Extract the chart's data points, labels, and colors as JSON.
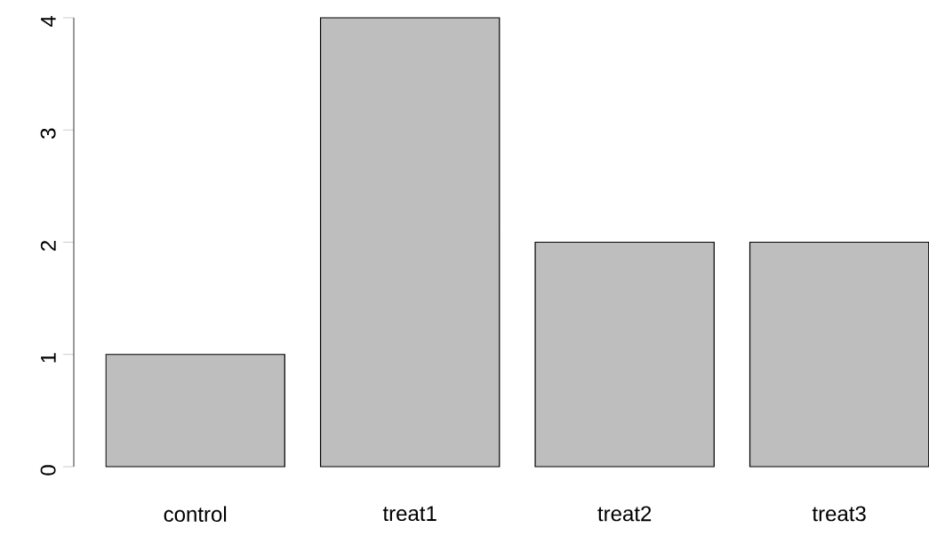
{
  "chart_data": {
    "type": "bar",
    "categories": [
      "control",
      "treat1",
      "treat2",
      "treat3"
    ],
    "values": [
      1,
      4,
      2,
      2
    ],
    "color": "#bebebe",
    "ylim": [
      0,
      4
    ],
    "yticks": [
      0,
      1,
      2,
      3,
      4
    ]
  }
}
